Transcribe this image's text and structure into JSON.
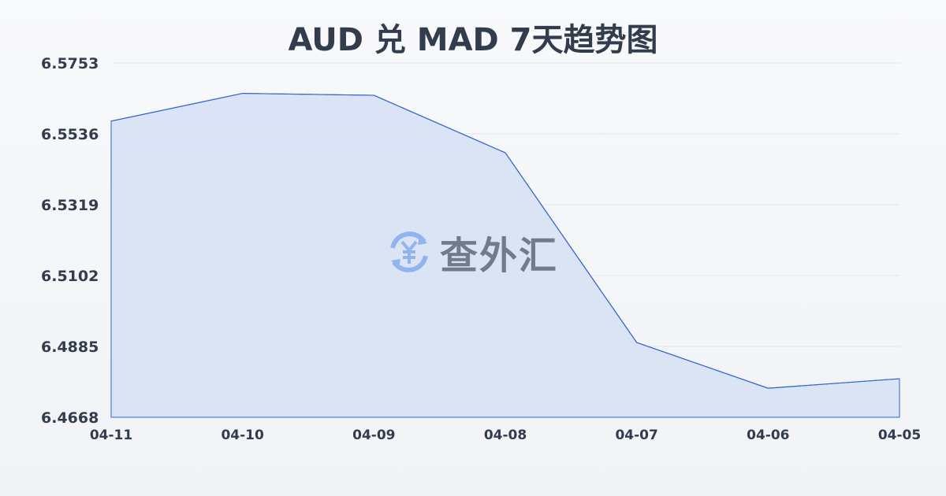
{
  "chart_data": {
    "type": "area",
    "title": "AUD 兑 MAD 7天趋势图",
    "xlabel": "",
    "ylabel": "",
    "categories": [
      "04-11",
      "04-10",
      "04-09",
      "04-08",
      "04-07",
      "04-06",
      "04-05"
    ],
    "values": [
      6.5575,
      6.566,
      6.5654,
      6.5478,
      6.4897,
      6.4757,
      6.4786
    ],
    "yticks": [
      "6.5753",
      "6.5536",
      "6.5319",
      "6.5102",
      "6.4885",
      "6.4668"
    ],
    "ylim": [
      6.4668,
      6.5753
    ],
    "grid": true,
    "colors": {
      "line": "#3366cc",
      "fill": "#d6e0f5"
    }
  },
  "watermark": {
    "text": "查外汇",
    "icon": "yen-exchange-icon"
  }
}
